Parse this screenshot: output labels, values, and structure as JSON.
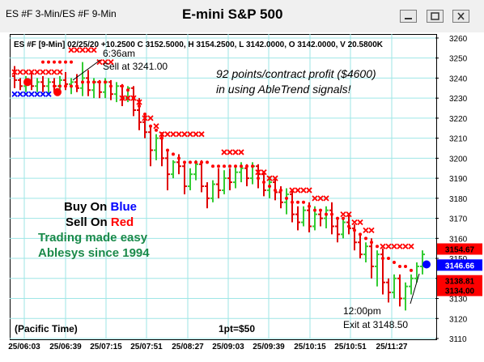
{
  "window": {
    "tab_title": "ES #F 3-Min/ES #F 9-Min",
    "title": "E-mini S&P 500"
  },
  "chart_data": {
    "type": "bar",
    "info_line": "ES #F [9-Min] 02/25/20  +10.2500 C 3152.5000, H 3154.2500, L 3142.0000, O 3142.0000, V 20.5800K",
    "ylim": [
      3110,
      3262
    ],
    "y_ticks": [
      "3260",
      "3250",
      "3240",
      "3230",
      "3220",
      "3210",
      "3200",
      "3190",
      "3180",
      "3170",
      "3160",
      "3150",
      "3140",
      "3130",
      "3120",
      "3110"
    ],
    "x_ticks": [
      "25/06:03",
      "25/06:39",
      "25/07:15",
      "25/07:51",
      "25/08:27",
      "25/09:03",
      "25/09:39",
      "25/10:15",
      "25/10:51",
      "25/11:27"
    ],
    "price_tags": [
      {
        "label": "3154.67",
        "value": 3154.67,
        "bg": "#ff0000",
        "fg": "#000000"
      },
      {
        "label": "3146.66",
        "value": 3146.66,
        "bg": "#0000ff",
        "fg": "#ffffff"
      },
      {
        "label": "3138.81",
        "value": 3138.81,
        "bg": "#ff0000",
        "fg": "#000000"
      },
      {
        "label": "3134.00",
        "value": 3134.0,
        "bg": "#ff0000",
        "fg": "#000000"
      }
    ],
    "annotations": {
      "sell_time": "6:36am",
      "sell_text": "Sell at 3241.00",
      "profit_line1": "92 points/contract profit ($4600)",
      "profit_line2": "in using AbleTrend signals!",
      "exit_time": "12:00pm",
      "exit_text": "Exit at 3148.50",
      "footer_left": "(Pacific Time)",
      "footer_mid": "1pt=$50"
    },
    "legend": {
      "buy_word": "Buy On ",
      "buy_color_word": "Blue",
      "sell_word": "Sell On ",
      "sell_color_word": "Red",
      "tagline1": "Trading made easy",
      "tagline2": "Ablesys since 1994"
    },
    "colors": {
      "up": "#33cc33",
      "down": "#e00000",
      "buy": "#0000ff",
      "sell": "#ff0000",
      "tagline": "#1a8a4a",
      "grid": "#9ee6e6"
    },
    "series": [
      {
        "values": [
          [
            3241,
            3239,
            3246,
            3235
          ],
          [
            3239,
            3236,
            3240,
            3234
          ],
          [
            3236,
            3239,
            3241,
            3233
          ],
          [
            3239,
            3236,
            3243,
            3234
          ],
          [
            3236,
            3238,
            3240,
            3233
          ],
          [
            3238,
            3236,
            3241,
            3233
          ],
          [
            3236,
            3238,
            3240,
            3232
          ],
          [
            3238,
            3236,
            3240,
            3233
          ],
          [
            3236,
            3239,
            3241,
            3233
          ],
          [
            3239,
            3237,
            3243,
            3234
          ],
          [
            3237,
            3238,
            3240,
            3232
          ],
          [
            3238,
            3235,
            3242,
            3233
          ],
          [
            3235,
            3240,
            3248,
            3231
          ],
          [
            3240,
            3234,
            3244,
            3231
          ],
          [
            3234,
            3238,
            3240,
            3230
          ],
          [
            3238,
            3233,
            3239,
            3230
          ],
          [
            3233,
            3238,
            3240,
            3230
          ],
          [
            3238,
            3232,
            3239,
            3229
          ],
          [
            3232,
            3236,
            3238,
            3228
          ],
          [
            3236,
            3230,
            3237,
            3226
          ],
          [
            3230,
            3235,
            3236,
            3228
          ],
          [
            3235,
            3224,
            3236,
            3221
          ],
          [
            3224,
            3218,
            3230,
            3214
          ],
          [
            3218,
            3213,
            3222,
            3210
          ],
          [
            3213,
            3204,
            3216,
            3196
          ],
          [
            3204,
            3210,
            3212,
            3199
          ],
          [
            3210,
            3200,
            3213,
            3196
          ],
          [
            3200,
            3192,
            3204,
            3184
          ],
          [
            3192,
            3198,
            3199,
            3190
          ],
          [
            3198,
            3196,
            3202,
            3192
          ],
          [
            3196,
            3186,
            3198,
            3182
          ],
          [
            3186,
            3192,
            3195,
            3184
          ],
          [
            3192,
            3197,
            3199,
            3189
          ],
          [
            3197,
            3186,
            3199,
            3183
          ],
          [
            3186,
            3180,
            3188,
            3175
          ],
          [
            3180,
            3187,
            3189,
            3178
          ],
          [
            3187,
            3184,
            3195,
            3180
          ],
          [
            3184,
            3190,
            3194,
            3182
          ],
          [
            3190,
            3188,
            3195,
            3184
          ],
          [
            3188,
            3193,
            3196,
            3185
          ],
          [
            3193,
            3195,
            3198,
            3188
          ],
          [
            3195,
            3190,
            3197,
            3186
          ],
          [
            3190,
            3196,
            3198,
            3187
          ],
          [
            3196,
            3192,
            3197,
            3185
          ],
          [
            3192,
            3184,
            3193,
            3181
          ],
          [
            3184,
            3188,
            3191,
            3180
          ],
          [
            3188,
            3183,
            3190,
            3179
          ],
          [
            3183,
            3178,
            3186,
            3175
          ],
          [
            3178,
            3182,
            3185,
            3172
          ],
          [
            3182,
            3172,
            3184,
            3168
          ],
          [
            3172,
            3168,
            3176,
            3164
          ],
          [
            3168,
            3174,
            3176,
            3166
          ],
          [
            3174,
            3166,
            3178,
            3163
          ],
          [
            3166,
            3172,
            3176,
            3164
          ],
          [
            3172,
            3170,
            3174,
            3166
          ],
          [
            3170,
            3174,
            3176,
            3165
          ],
          [
            3174,
            3166,
            3178,
            3162
          ],
          [
            3166,
            3162,
            3170,
            3158
          ],
          [
            3162,
            3168,
            3170,
            3160
          ],
          [
            3168,
            3165,
            3172,
            3162
          ],
          [
            3165,
            3158,
            3167,
            3154
          ],
          [
            3158,
            3152,
            3162,
            3150
          ],
          [
            3152,
            3156,
            3158,
            3148
          ],
          [
            3156,
            3146,
            3160,
            3140
          ],
          [
            3146,
            3152,
            3154,
            3136
          ],
          [
            3152,
            3138,
            3155,
            3132
          ],
          [
            3138,
            3133,
            3140,
            3128
          ],
          [
            3133,
            3140,
            3142,
            3130
          ],
          [
            3140,
            3130,
            3142,
            3126
          ],
          [
            3130,
            3136,
            3138,
            3124
          ],
          [
            3136,
            3140,
            3142,
            3132
          ],
          [
            3140,
            3146,
            3148,
            3138
          ],
          [
            3146,
            3152,
            3154,
            3142
          ]
        ]
      }
    ],
    "resistance_x": [
      [
        0,
        3243
      ],
      [
        1,
        3243
      ],
      [
        2,
        3243
      ],
      [
        3,
        3243
      ],
      [
        4,
        3243
      ],
      [
        5,
        3243
      ],
      [
        6,
        3243
      ],
      [
        7,
        3243
      ],
      [
        8,
        3243
      ],
      [
        10,
        3254
      ],
      [
        11,
        3254
      ],
      [
        12,
        3254
      ],
      [
        13,
        3254
      ],
      [
        14,
        3254
      ],
      [
        15,
        3248
      ],
      [
        16,
        3248
      ],
      [
        17,
        3248
      ],
      [
        19,
        3230
      ],
      [
        20,
        3230
      ],
      [
        21,
        3230
      ],
      [
        22,
        3228
      ],
      [
        23,
        3220
      ],
      [
        24,
        3220
      ],
      [
        25,
        3216
      ],
      [
        26,
        3212
      ],
      [
        27,
        3212
      ],
      [
        28,
        3212
      ],
      [
        29,
        3212
      ],
      [
        30,
        3212
      ],
      [
        31,
        3212
      ],
      [
        32,
        3212
      ],
      [
        33,
        3212
      ],
      [
        37,
        3203
      ],
      [
        38,
        3203
      ],
      [
        39,
        3203
      ],
      [
        40,
        3203
      ],
      [
        43,
        3193
      ],
      [
        44,
        3193
      ],
      [
        45,
        3190
      ],
      [
        46,
        3190
      ],
      [
        49,
        3184
      ],
      [
        50,
        3184
      ],
      [
        51,
        3184
      ],
      [
        52,
        3184
      ],
      [
        53,
        3180
      ],
      [
        54,
        3180
      ],
      [
        55,
        3180
      ],
      [
        58,
        3172
      ],
      [
        59,
        3172
      ],
      [
        60,
        3168
      ],
      [
        61,
        3168
      ],
      [
        62,
        3164
      ],
      [
        63,
        3164
      ],
      [
        65,
        3156
      ],
      [
        66,
        3156
      ],
      [
        67,
        3156
      ],
      [
        68,
        3156
      ],
      [
        69,
        3156
      ],
      [
        70,
        3156
      ]
    ],
    "resistance_dots": [
      [
        5,
        3248
      ],
      [
        6,
        3248
      ],
      [
        7,
        3248
      ],
      [
        8,
        3248
      ],
      [
        9,
        3248
      ],
      [
        10,
        3248
      ],
      [
        19,
        3236
      ],
      [
        20,
        3234
      ],
      [
        21,
        3230
      ],
      [
        22,
        3226
      ],
      [
        23,
        3222
      ],
      [
        24,
        3216
      ],
      [
        25,
        3214
      ],
      [
        26,
        3210
      ],
      [
        27,
        3204
      ],
      [
        28,
        3202
      ],
      [
        29,
        3200
      ],
      [
        30,
        3198
      ],
      [
        31,
        3198
      ],
      [
        32,
        3198
      ],
      [
        33,
        3198
      ],
      [
        34,
        3198
      ],
      [
        35,
        3196
      ],
      [
        36,
        3196
      ],
      [
        37,
        3196
      ],
      [
        38,
        3196
      ],
      [
        39,
        3196
      ],
      [
        40,
        3196
      ],
      [
        41,
        3196
      ],
      [
        42,
        3196
      ],
      [
        43,
        3190
      ],
      [
        44,
        3188
      ],
      [
        45,
        3186
      ],
      [
        46,
        3184
      ],
      [
        47,
        3184
      ],
      [
        48,
        3180
      ],
      [
        49,
        3178
      ],
      [
        50,
        3178
      ],
      [
        51,
        3178
      ],
      [
        52,
        3176
      ],
      [
        53,
        3174
      ],
      [
        54,
        3174
      ],
      [
        55,
        3172
      ],
      [
        56,
        3172
      ],
      [
        57,
        3170
      ],
      [
        58,
        3170
      ],
      [
        59,
        3166
      ],
      [
        60,
        3164
      ],
      [
        61,
        3162
      ],
      [
        62,
        3160
      ],
      [
        63,
        3158
      ],
      [
        64,
        3156
      ],
      [
        65,
        3150
      ],
      [
        66,
        3150
      ],
      [
        67,
        3148
      ],
      [
        68,
        3146
      ],
      [
        69,
        3146
      ],
      [
        70,
        3144
      ]
    ],
    "support_x": [
      [
        0,
        3232
      ],
      [
        1,
        3232
      ],
      [
        2,
        3232
      ],
      [
        3,
        3232
      ],
      [
        4,
        3232
      ],
      [
        5,
        3232
      ],
      [
        6,
        3232
      ]
    ],
    "support_dots": [
      [
        7,
        3236
      ],
      [
        8,
        3236
      ],
      [
        9,
        3236
      ],
      [
        10,
        3236
      ],
      [
        11,
        3236
      ],
      [
        12,
        3238
      ],
      [
        13,
        3238
      ],
      [
        14,
        3238
      ],
      [
        15,
        3238
      ],
      [
        16,
        3238
      ],
      [
        17,
        3236
      ]
    ],
    "sell_signal": [
      7,
      3233
    ],
    "sell_signal2": [
      2,
      3238
    ],
    "buy_signal": [
      72,
      3147
    ]
  }
}
